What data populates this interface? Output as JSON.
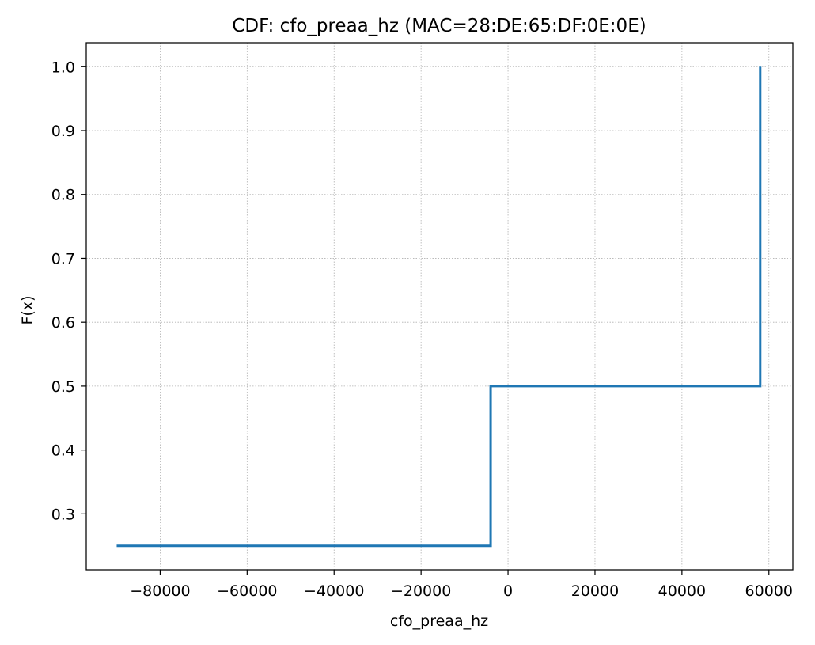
{
  "chart_data": {
    "type": "line",
    "step": true,
    "title": "CDF: cfo_preaa_hz (MAC=28:DE:65:DF:0E:0E)",
    "xlabel": "cfo_preaa_hz",
    "ylabel": "F(x)",
    "xlim": [
      -97000,
      65500
    ],
    "ylim": [
      0.2125,
      1.0375
    ],
    "xticks": [
      -80000,
      -60000,
      -40000,
      -20000,
      0,
      20000,
      40000,
      60000
    ],
    "xtick_labels": [
      "−80000",
      "−60000",
      "−40000",
      "−20000",
      "0",
      "20000",
      "40000",
      "60000"
    ],
    "yticks": [
      0.3,
      0.4,
      0.5,
      0.6,
      0.7,
      0.8,
      0.9,
      1.0
    ],
    "ytick_labels": [
      "0.3",
      "0.4",
      "0.5",
      "0.6",
      "0.7",
      "0.8",
      "0.9",
      "1.0"
    ],
    "grid": true,
    "series": [
      {
        "color": "#1f77b4",
        "x": [
          -90000,
          -4000,
          -4000,
          58000,
          58000
        ],
        "y": [
          0.25,
          0.25,
          0.5,
          0.5,
          1.0
        ]
      }
    ]
  }
}
